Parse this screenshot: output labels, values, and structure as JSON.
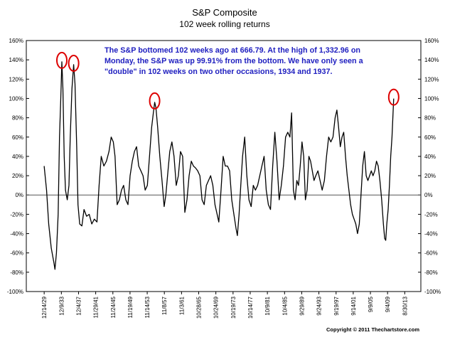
{
  "chart_data": {
    "type": "line",
    "title": "S&P Composite",
    "subtitle": "102 week rolling returns",
    "annotation": "The S&P bottomed 102 weeks ago at 666.79.  At the high of 1,332.96 on Monday, the S&P was up 99.91% from the bottom.  We have only seen a \"double\" in 102 weeks on two other occasions, 1934 and 1937.",
    "annotation_lines": [
      "The S&P bottomed 102 weeks ago at 666.79.  At the high of 1,332.96 on",
      "Monday, the S&P was up 99.91% from the bottom.  We have only seen a",
      "\"double\" in 102 weeks on two other occasions, 1934 and 1937."
    ],
    "copyright": "Copyright © 2011 Thechartstore.com",
    "ylim": [
      -100,
      160
    ],
    "y_ticks": [
      "160%",
      "140%",
      "120%",
      "100%",
      "80%",
      "60%",
      "40%",
      "20%",
      "0%",
      "-20%",
      "-40%",
      "-60%",
      "-80%",
      "-100%"
    ],
    "x_tick_labels": [
      "12/14/29",
      "12/9/33",
      "12/4/37",
      "11/29/41",
      "11/24/45",
      "11/19/49",
      "11/14/53",
      "11/8/57",
      "11/3/61",
      "10/28/65",
      "10/24/69",
      "10/19/73",
      "10/14/77",
      "10/9/81",
      "10/4/85",
      "9/29/89",
      "9/24/93",
      "9/19/97",
      "9/14/01",
      "9/9/05",
      "9/4/09",
      "8/30/13"
    ],
    "x_tick_years": [
      1929.95,
      1933.94,
      1937.93,
      1941.91,
      1945.9,
      1949.88,
      1953.87,
      1957.85,
      1961.84,
      1965.82,
      1969.81,
      1973.8,
      1977.78,
      1981.77,
      1985.76,
      1989.74,
      1993.73,
      1997.72,
      2001.7,
      2005.69,
      2009.67,
      2013.66
    ],
    "x_range": [
      1925.8,
      2017.4
    ],
    "series": [
      {
        "name": "102 week rolling return (%)",
        "points": [
          [
            1929.95,
            30
          ],
          [
            1930.5,
            5
          ],
          [
            1931.0,
            -30
          ],
          [
            1931.6,
            -55
          ],
          [
            1932.2,
            -70
          ],
          [
            1932.45,
            -77
          ],
          [
            1932.8,
            -60
          ],
          [
            1933.2,
            -20
          ],
          [
            1933.5,
            60
          ],
          [
            1933.8,
            100
          ],
          [
            1934.05,
            138
          ],
          [
            1934.3,
            110
          ],
          [
            1934.6,
            40
          ],
          [
            1934.9,
            5
          ],
          [
            1935.3,
            -5
          ],
          [
            1935.7,
            10
          ],
          [
            1936.0,
            60
          ],
          [
            1936.4,
            110
          ],
          [
            1936.8,
            135
          ],
          [
            1937.1,
            115
          ],
          [
            1937.5,
            50
          ],
          [
            1937.8,
            -10
          ],
          [
            1938.2,
            -30
          ],
          [
            1938.7,
            -32
          ],
          [
            1939.2,
            -15
          ],
          [
            1939.8,
            -22
          ],
          [
            1940.4,
            -20
          ],
          [
            1941.0,
            -30
          ],
          [
            1941.6,
            -25
          ],
          [
            1942.2,
            -28
          ],
          [
            1942.7,
            10
          ],
          [
            1943.2,
            40
          ],
          [
            1943.8,
            30
          ],
          [
            1944.4,
            35
          ],
          [
            1945.0,
            45
          ],
          [
            1945.5,
            60
          ],
          [
            1946.0,
            55
          ],
          [
            1946.4,
            40
          ],
          [
            1946.9,
            -10
          ],
          [
            1947.4,
            -5
          ],
          [
            1947.9,
            5
          ],
          [
            1948.4,
            10
          ],
          [
            1948.9,
            -5
          ],
          [
            1949.4,
            -10
          ],
          [
            1949.9,
            20
          ],
          [
            1950.4,
            35
          ],
          [
            1950.9,
            45
          ],
          [
            1951.4,
            50
          ],
          [
            1951.9,
            30
          ],
          [
            1952.4,
            25
          ],
          [
            1952.9,
            20
          ],
          [
            1953.4,
            5
          ],
          [
            1953.9,
            10
          ],
          [
            1954.4,
            40
          ],
          [
            1954.9,
            70
          ],
          [
            1955.3,
            85
          ],
          [
            1955.6,
            96
          ],
          [
            1955.9,
            90
          ],
          [
            1956.3,
            70
          ],
          [
            1956.8,
            40
          ],
          [
            1957.3,
            15
          ],
          [
            1957.8,
            -12
          ],
          [
            1958.2,
            0
          ],
          [
            1958.7,
            25
          ],
          [
            1959.1,
            45
          ],
          [
            1959.6,
            55
          ],
          [
            1960.1,
            40
          ],
          [
            1960.6,
            10
          ],
          [
            1961.1,
            20
          ],
          [
            1961.6,
            45
          ],
          [
            1962.1,
            40
          ],
          [
            1962.6,
            -18
          ],
          [
            1963.1,
            -5
          ],
          [
            1963.6,
            20
          ],
          [
            1964.1,
            35
          ],
          [
            1964.6,
            30
          ],
          [
            1965.1,
            28
          ],
          [
            1965.6,
            25
          ],
          [
            1966.1,
            20
          ],
          [
            1966.6,
            -5
          ],
          [
            1967.1,
            -10
          ],
          [
            1967.6,
            10
          ],
          [
            1968.1,
            15
          ],
          [
            1968.6,
            20
          ],
          [
            1969.1,
            10
          ],
          [
            1969.6,
            -10
          ],
          [
            1970.1,
            -20
          ],
          [
            1970.5,
            -28
          ],
          [
            1971.0,
            5
          ],
          [
            1971.5,
            40
          ],
          [
            1972.0,
            30
          ],
          [
            1972.5,
            30
          ],
          [
            1973.0,
            25
          ],
          [
            1973.5,
            -5
          ],
          [
            1974.0,
            -20
          ],
          [
            1974.5,
            -35
          ],
          [
            1974.8,
            -42
          ],
          [
            1975.2,
            -20
          ],
          [
            1975.6,
            10
          ],
          [
            1976.0,
            40
          ],
          [
            1976.5,
            60
          ],
          [
            1977.0,
            20
          ],
          [
            1977.5,
            -5
          ],
          [
            1978.0,
            -12
          ],
          [
            1978.5,
            10
          ],
          [
            1979.0,
            5
          ],
          [
            1979.5,
            10
          ],
          [
            1980.0,
            20
          ],
          [
            1980.5,
            30
          ],
          [
            1981.0,
            40
          ],
          [
            1981.5,
            5
          ],
          [
            1982.0,
            -10
          ],
          [
            1982.5,
            -15
          ],
          [
            1983.0,
            30
          ],
          [
            1983.5,
            65
          ],
          [
            1984.0,
            35
          ],
          [
            1984.5,
            -5
          ],
          [
            1985.0,
            10
          ],
          [
            1985.5,
            30
          ],
          [
            1986.0,
            60
          ],
          [
            1986.5,
            65
          ],
          [
            1987.0,
            60
          ],
          [
            1987.4,
            85
          ],
          [
            1987.8,
            5
          ],
          [
            1988.2,
            -5
          ],
          [
            1988.6,
            15
          ],
          [
            1989.0,
            10
          ],
          [
            1989.4,
            30
          ],
          [
            1989.8,
            55
          ],
          [
            1990.2,
            40
          ],
          [
            1990.6,
            -5
          ],
          [
            1991.0,
            5
          ],
          [
            1991.4,
            40
          ],
          [
            1991.8,
            35
          ],
          [
            1992.2,
            25
          ],
          [
            1992.6,
            15
          ],
          [
            1993.0,
            20
          ],
          [
            1993.5,
            25
          ],
          [
            1994.0,
            15
          ],
          [
            1994.5,
            5
          ],
          [
            1995.0,
            15
          ],
          [
            1995.5,
            40
          ],
          [
            1996.0,
            60
          ],
          [
            1996.5,
            55
          ],
          [
            1997.0,
            60
          ],
          [
            1997.5,
            80
          ],
          [
            1997.9,
            88
          ],
          [
            1998.3,
            70
          ],
          [
            1998.7,
            50
          ],
          [
            1999.1,
            60
          ],
          [
            1999.5,
            65
          ],
          [
            1999.9,
            40
          ],
          [
            2000.3,
            20
          ],
          [
            2000.7,
            5
          ],
          [
            2001.1,
            -10
          ],
          [
            2001.5,
            -20
          ],
          [
            2001.9,
            -25
          ],
          [
            2002.3,
            -30
          ],
          [
            2002.7,
            -40
          ],
          [
            2003.1,
            -30
          ],
          [
            2003.5,
            0
          ],
          [
            2003.9,
            30
          ],
          [
            2004.3,
            45
          ],
          [
            2004.7,
            20
          ],
          [
            2005.1,
            15
          ],
          [
            2005.5,
            20
          ],
          [
            2005.9,
            25
          ],
          [
            2006.3,
            20
          ],
          [
            2006.7,
            25
          ],
          [
            2007.1,
            35
          ],
          [
            2007.5,
            30
          ],
          [
            2007.9,
            15
          ],
          [
            2008.3,
            -5
          ],
          [
            2008.7,
            -30
          ],
          [
            2009.0,
            -45
          ],
          [
            2009.25,
            -47
          ],
          [
            2009.5,
            -30
          ],
          [
            2009.8,
            -15
          ],
          [
            2010.1,
            10
          ],
          [
            2010.4,
            40
          ],
          [
            2010.7,
            60
          ],
          [
            2010.95,
            85
          ],
          [
            2011.1,
            99.91
          ]
        ]
      }
    ],
    "highlight_circles": [
      {
        "label": "1934 peak",
        "x": 1934.05,
        "y": 138
      },
      {
        "label": "1937 peak",
        "x": 1936.8,
        "y": 135
      },
      {
        "label": "1955 peak",
        "x": 1955.6,
        "y": 96
      },
      {
        "label": "2011 peak",
        "x": 2011.1,
        "y": 99.91
      }
    ],
    "colors": {
      "line": "#000000",
      "annotation_text": "#2020c0",
      "circle": "#dd0000",
      "zero_line": "#555555",
      "frame": "#000000"
    }
  }
}
